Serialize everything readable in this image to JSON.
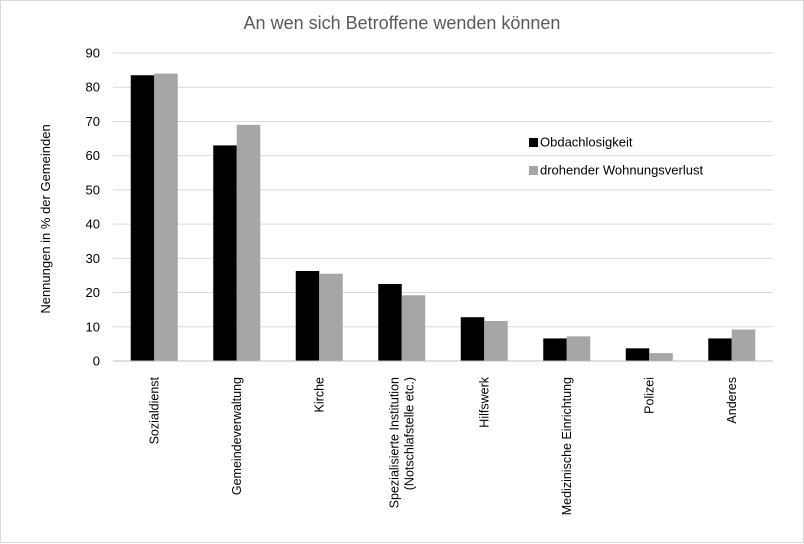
{
  "chart_data": {
    "type": "bar",
    "title": "An wen sich Betroffene wenden können",
    "xlabel": "",
    "ylabel": "Nennungen in % der Gemeinden",
    "ylim": [
      0,
      90
    ],
    "yticks": [
      0,
      10,
      20,
      30,
      40,
      50,
      60,
      70,
      80,
      90
    ],
    "grid": true,
    "legend_position": "right",
    "categories": [
      [
        "Sozialdienst"
      ],
      [
        "Gemeindeverwaltung"
      ],
      [
        "Kirche"
      ],
      [
        "Spezialisierte Institution",
        "(Notschlafstelle etc.)"
      ],
      [
        "Hilfswerk"
      ],
      [
        "Medizinische Einrichtung"
      ],
      [
        "Polizei"
      ],
      [
        "Anderes"
      ]
    ],
    "series": [
      {
        "name": "Obdachlosigkeit",
        "color": "#000000",
        "values": [
          83.5,
          63,
          26.3,
          22.5,
          12.8,
          6.6,
          3.7,
          6.6
        ]
      },
      {
        "name": "drohender Wohnungsverlust",
        "color": "#a6a6a6",
        "values": [
          84,
          69,
          25.5,
          19.2,
          11.7,
          7.2,
          2.3,
          9.2
        ]
      }
    ]
  }
}
